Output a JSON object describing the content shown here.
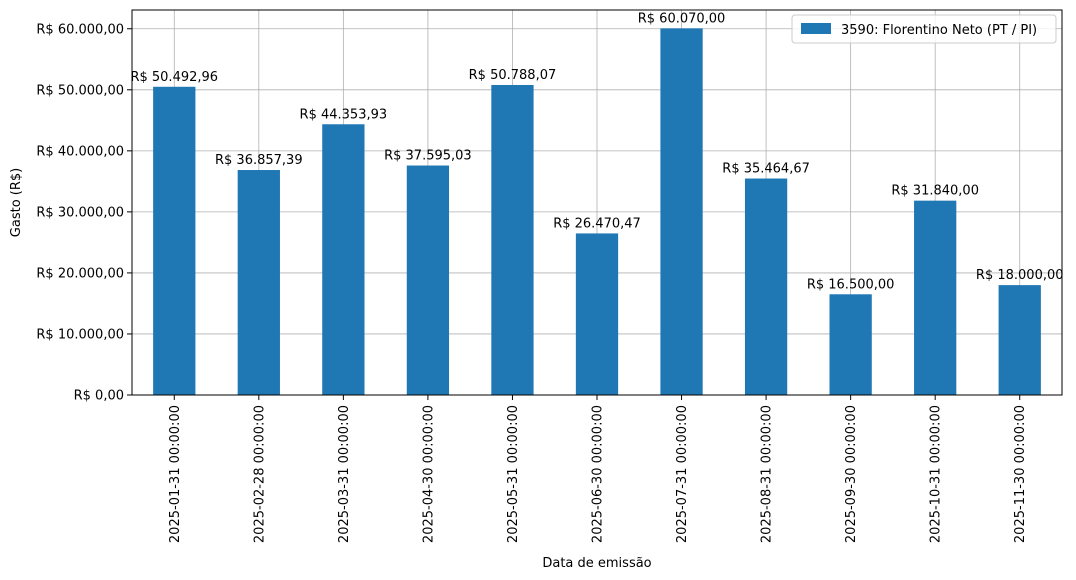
{
  "chart_data": {
    "type": "bar",
    "xlabel": "Data de emissão",
    "ylabel": "Gasto (R$)",
    "categories": [
      "2025-01-31 00:00:00",
      "2025-02-28 00:00:00",
      "2025-03-31 00:00:00",
      "2025-04-30 00:00:00",
      "2025-05-31 00:00:00",
      "2025-06-30 00:00:00",
      "2025-07-31 00:00:00",
      "2025-08-31 00:00:00",
      "2025-09-30 00:00:00",
      "2025-10-31 00:00:00",
      "2025-11-30 00:00:00"
    ],
    "series": [
      {
        "name": "3590: Florentino Neto (PT / PI)",
        "color": "#1f77b4",
        "values": [
          50492.96,
          36857.39,
          44353.93,
          37595.03,
          50788.07,
          26470.47,
          60070.0,
          35464.67,
          16500.0,
          31840.0,
          18000.0
        ],
        "data_labels": [
          "R$ 50.492,96",
          "R$ 36.857,39",
          "R$ 44.353,93",
          "R$ 37.595,03",
          "R$ 50.788,07",
          "R$ 26.470,47",
          "R$ 60.070,00",
          "R$ 35.464,67",
          "R$ 16.500,00",
          "R$ 31.840,00",
          "R$ 18.000,00"
        ]
      }
    ],
    "y_ticks": [
      0,
      10000,
      20000,
      30000,
      40000,
      50000,
      60000
    ],
    "y_tick_labels": [
      "R$ 0,00",
      "R$ 10.000,00",
      "R$ 20.000,00",
      "R$ 30.000,00",
      "R$ 40.000,00",
      "R$ 50.000,00",
      "R$ 60.000,00"
    ],
    "ylim": [
      0,
      63073.5
    ],
    "grid": true,
    "legend_position": "top-right"
  }
}
